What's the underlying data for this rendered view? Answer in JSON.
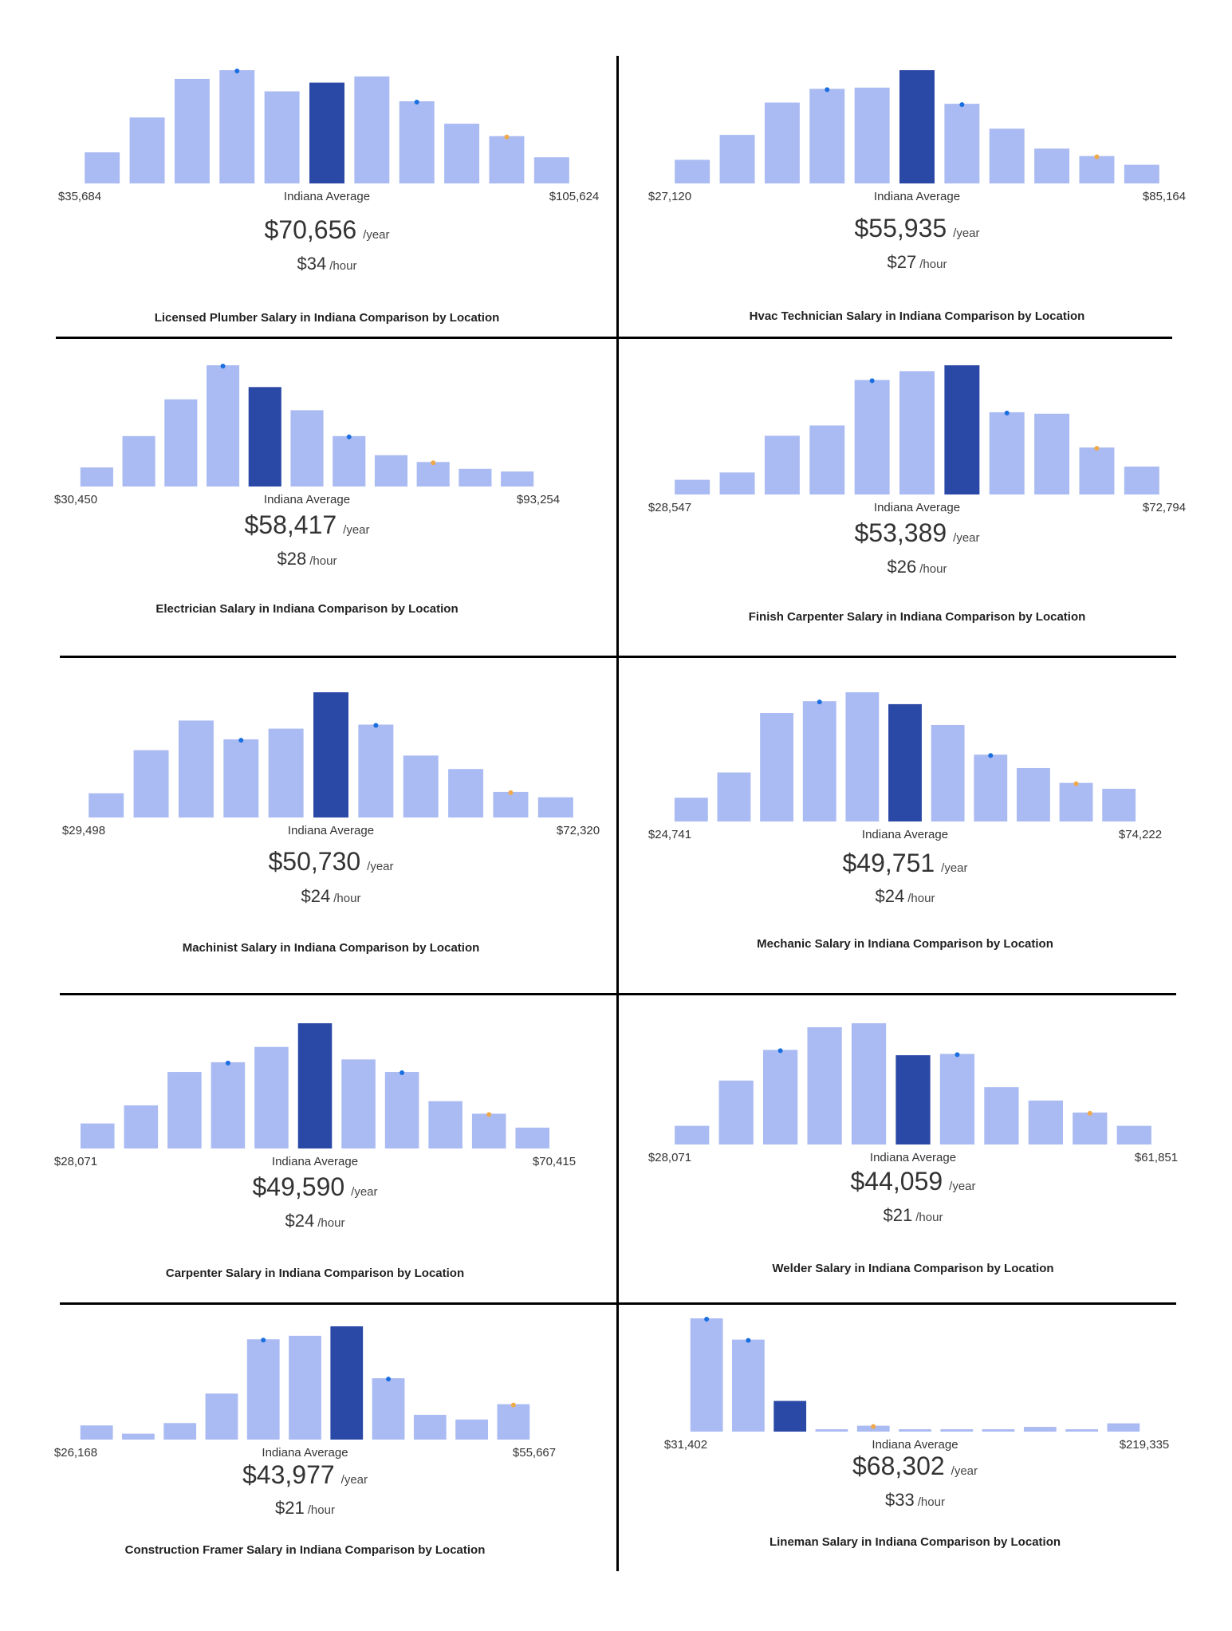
{
  "colors": {
    "bar": "#aabaf2",
    "highlight": "#2a48a6",
    "marker_blue": "#1a6fe0",
    "marker_orange": "#f0a94a",
    "divider": "#000000"
  },
  "chart_data": [
    {
      "type": "bar",
      "title": "Licensed Plumber Salary in Indiana Comparison by Location",
      "min_label": "$35,684",
      "avg_label": "Indiana Average",
      "max_label": "$105,624",
      "year_value": "$70,656",
      "year_unit": "/year",
      "hour_value": "$34",
      "hour_unit": "/hour",
      "values": [
        25,
        53,
        84,
        91,
        74,
        81,
        86,
        66,
        48,
        38,
        21
      ],
      "highlight_index": 5,
      "blue_markers": [
        3,
        7
      ],
      "orange_markers": [
        9
      ]
    },
    {
      "type": "bar",
      "title": "Hvac Technician Salary in Indiana Comparison by Location",
      "min_label": "$27,120",
      "avg_label": "Indiana Average",
      "max_label": "$85,164",
      "year_value": "$55,935",
      "year_unit": "/year",
      "hour_value": "$27",
      "hour_unit": "/hour",
      "values": [
        19,
        39,
        65,
        76,
        77,
        91,
        64,
        44,
        28,
        22,
        15
      ],
      "highlight_index": 5,
      "blue_markers": [
        3,
        6
      ],
      "orange_markers": [
        9
      ]
    },
    {
      "type": "bar",
      "title": "Electrician Salary in Indiana Comparison by Location",
      "min_label": "$30,450",
      "avg_label": "Indiana Average",
      "max_label": "$93,254",
      "year_value": "$58,417",
      "year_unit": "/year",
      "hour_value": "$28",
      "hour_unit": "/hour",
      "values": [
        14,
        37,
        64,
        89,
        73,
        56,
        37,
        23,
        18,
        13,
        11
      ],
      "highlight_index": 4,
      "blue_markers": [
        3,
        6
      ],
      "orange_markers": [
        8
      ]
    },
    {
      "type": "bar",
      "title": "Finish Carpenter Salary in Indiana Comparison by Location",
      "min_label": "$28,547",
      "avg_label": "Indiana Average",
      "max_label": "$72,794",
      "year_value": "$53,389",
      "year_unit": "/year",
      "hour_value": "$26",
      "hour_unit": "/hour",
      "values": [
        10,
        15,
        40,
        47,
        78,
        84,
        88,
        56,
        55,
        32,
        19
      ],
      "highlight_index": 6,
      "blue_markers": [
        4,
        7
      ],
      "orange_markers": [
        9
      ]
    },
    {
      "type": "bar",
      "title": "Machinist Salary in Indiana Comparison by Location",
      "min_label": "$29,498",
      "avg_label": "Indiana Average",
      "max_label": "$72,320",
      "year_value": "$50,730",
      "year_unit": "/year",
      "hour_value": "$24",
      "hour_unit": "/hour",
      "values": [
        18,
        50,
        72,
        58,
        66,
        93,
        69,
        46,
        36,
        19,
        15
      ],
      "highlight_index": 5,
      "blue_markers": [
        3,
        6
      ],
      "orange_markers": [
        9
      ]
    },
    {
      "type": "bar",
      "title": "Mechanic Salary in Indiana Comparison by Location",
      "min_label": "$24,741",
      "avg_label": "Indiana Average",
      "max_label": "$74,222",
      "year_value": "$49,751",
      "year_unit": "/year",
      "hour_value": "$24",
      "hour_unit": "/hour",
      "values": [
        16,
        33,
        73,
        81,
        87,
        79,
        65,
        45,
        36,
        26,
        22
      ],
      "highlight_index": 5,
      "blue_markers": [
        3,
        7
      ],
      "orange_markers": [
        9
      ]
    },
    {
      "type": "bar",
      "title": "Carpenter Salary in Indiana Comparison by Location",
      "min_label": "$28,071",
      "avg_label": "Indiana Average",
      "max_label": "$70,415",
      "year_value": "$49,590",
      "year_unit": "/year",
      "hour_value": "$24",
      "hour_unit": "/hour",
      "values": [
        18,
        31,
        55,
        62,
        73,
        90,
        64,
        55,
        34,
        25,
        15
      ],
      "highlight_index": 5,
      "blue_markers": [
        3,
        7
      ],
      "orange_markers": [
        9
      ]
    },
    {
      "type": "bar",
      "title": "Welder Salary in Indiana Comparison by Location",
      "min_label": "$28,071",
      "avg_label": "Indiana Average",
      "max_label": "$61,851",
      "year_value": "$44,059",
      "year_unit": "/year",
      "hour_value": "$21",
      "hour_unit": "/hour",
      "values": [
        14,
        48,
        71,
        88,
        91,
        67,
        68,
        43,
        33,
        24,
        14
      ],
      "highlight_index": 5,
      "blue_markers": [
        2,
        6
      ],
      "orange_markers": [
        9
      ]
    },
    {
      "type": "bar",
      "title": "Construction Framer Salary in Indiana Comparison by Location",
      "min_label": "$26,168",
      "avg_label": "Indiana Average",
      "max_label": "$55,667",
      "year_value": "$43,977",
      "year_unit": "/year",
      "hour_value": "$21",
      "hour_unit": "/hour",
      "values": [
        12,
        5,
        14,
        39,
        85,
        88,
        96,
        52,
        21,
        17,
        30
      ],
      "highlight_index": 6,
      "blue_markers": [
        4,
        7
      ],
      "orange_markers": [
        10
      ]
    },
    {
      "type": "bar",
      "title": "Lineman Salary in Indiana Comparison by Location",
      "min_label": "$31,402",
      "avg_label": "Indiana Average",
      "max_label": "$219,335",
      "year_value": "$68,302",
      "year_unit": "/year",
      "hour_value": "$33",
      "hour_unit": "/hour",
      "values": [
        96,
        78,
        26,
        2,
        5,
        2,
        2,
        2,
        4,
        2,
        7
      ],
      "highlight_index": 2,
      "blue_markers": [
        0,
        1
      ],
      "orange_markers": [
        4
      ]
    }
  ]
}
